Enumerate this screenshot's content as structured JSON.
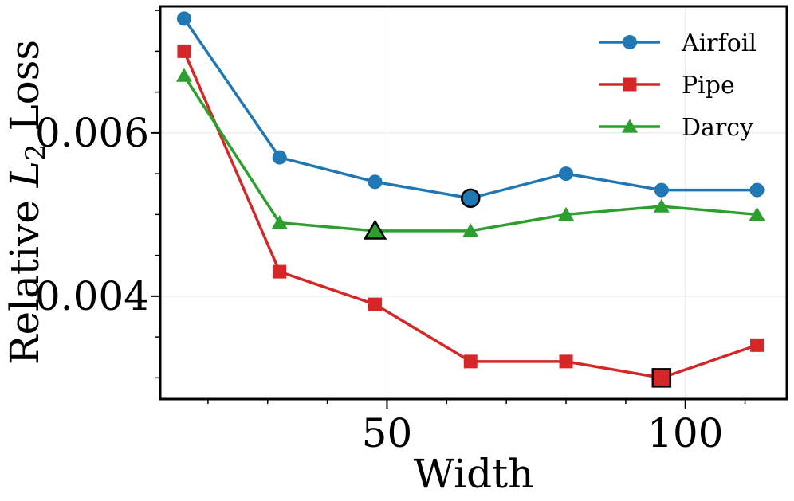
{
  "chart_data": {
    "type": "line",
    "xlabel": "Width",
    "ylabel_prefix": "Relative ",
    "ylabel_symbol": "L",
    "ylabel_subscript": "2",
    "ylabel_suffix": " Loss",
    "xlim": [
      12,
      117
    ],
    "ylim": [
      0.00274,
      0.00755
    ],
    "xticks": [
      50,
      100
    ],
    "xtick_labels": [
      "50",
      "100"
    ],
    "xminor_ticks": [
      20,
      30,
      40,
      60,
      70,
      80,
      90,
      110
    ],
    "yticks": [
      0.004,
      0.006
    ],
    "ytick_labels": [
      "0.004",
      "0.006"
    ],
    "yminor_ticks": [
      0.003,
      0.0035,
      0.0045,
      0.005,
      0.0055,
      0.0065,
      0.007,
      0.0075
    ],
    "grid": true,
    "legend_position": "top-right",
    "series": [
      {
        "name": "Airfoil",
        "color": "#1f77b4",
        "marker": "circle",
        "x": [
          16,
          32,
          48,
          64,
          80,
          96,
          112
        ],
        "y": [
          0.0074,
          0.0057,
          0.0054,
          0.0052,
          0.0055,
          0.0053,
          0.0053
        ],
        "highlight_index": 3
      },
      {
        "name": "Pipe",
        "color": "#d62728",
        "marker": "square",
        "x": [
          16,
          32,
          48,
          64,
          80,
          96,
          112
        ],
        "y": [
          0.007,
          0.0043,
          0.0039,
          0.0032,
          0.0032,
          0.003,
          0.0034
        ],
        "highlight_index": 5
      },
      {
        "name": "Darcy",
        "color": "#2ca02c",
        "marker": "triangle",
        "x": [
          16,
          32,
          48,
          64,
          80,
          96,
          112
        ],
        "y": [
          0.0067,
          0.0049,
          0.0048,
          0.0048,
          0.005,
          0.0051,
          0.005
        ],
        "highlight_index": 2
      }
    ]
  }
}
